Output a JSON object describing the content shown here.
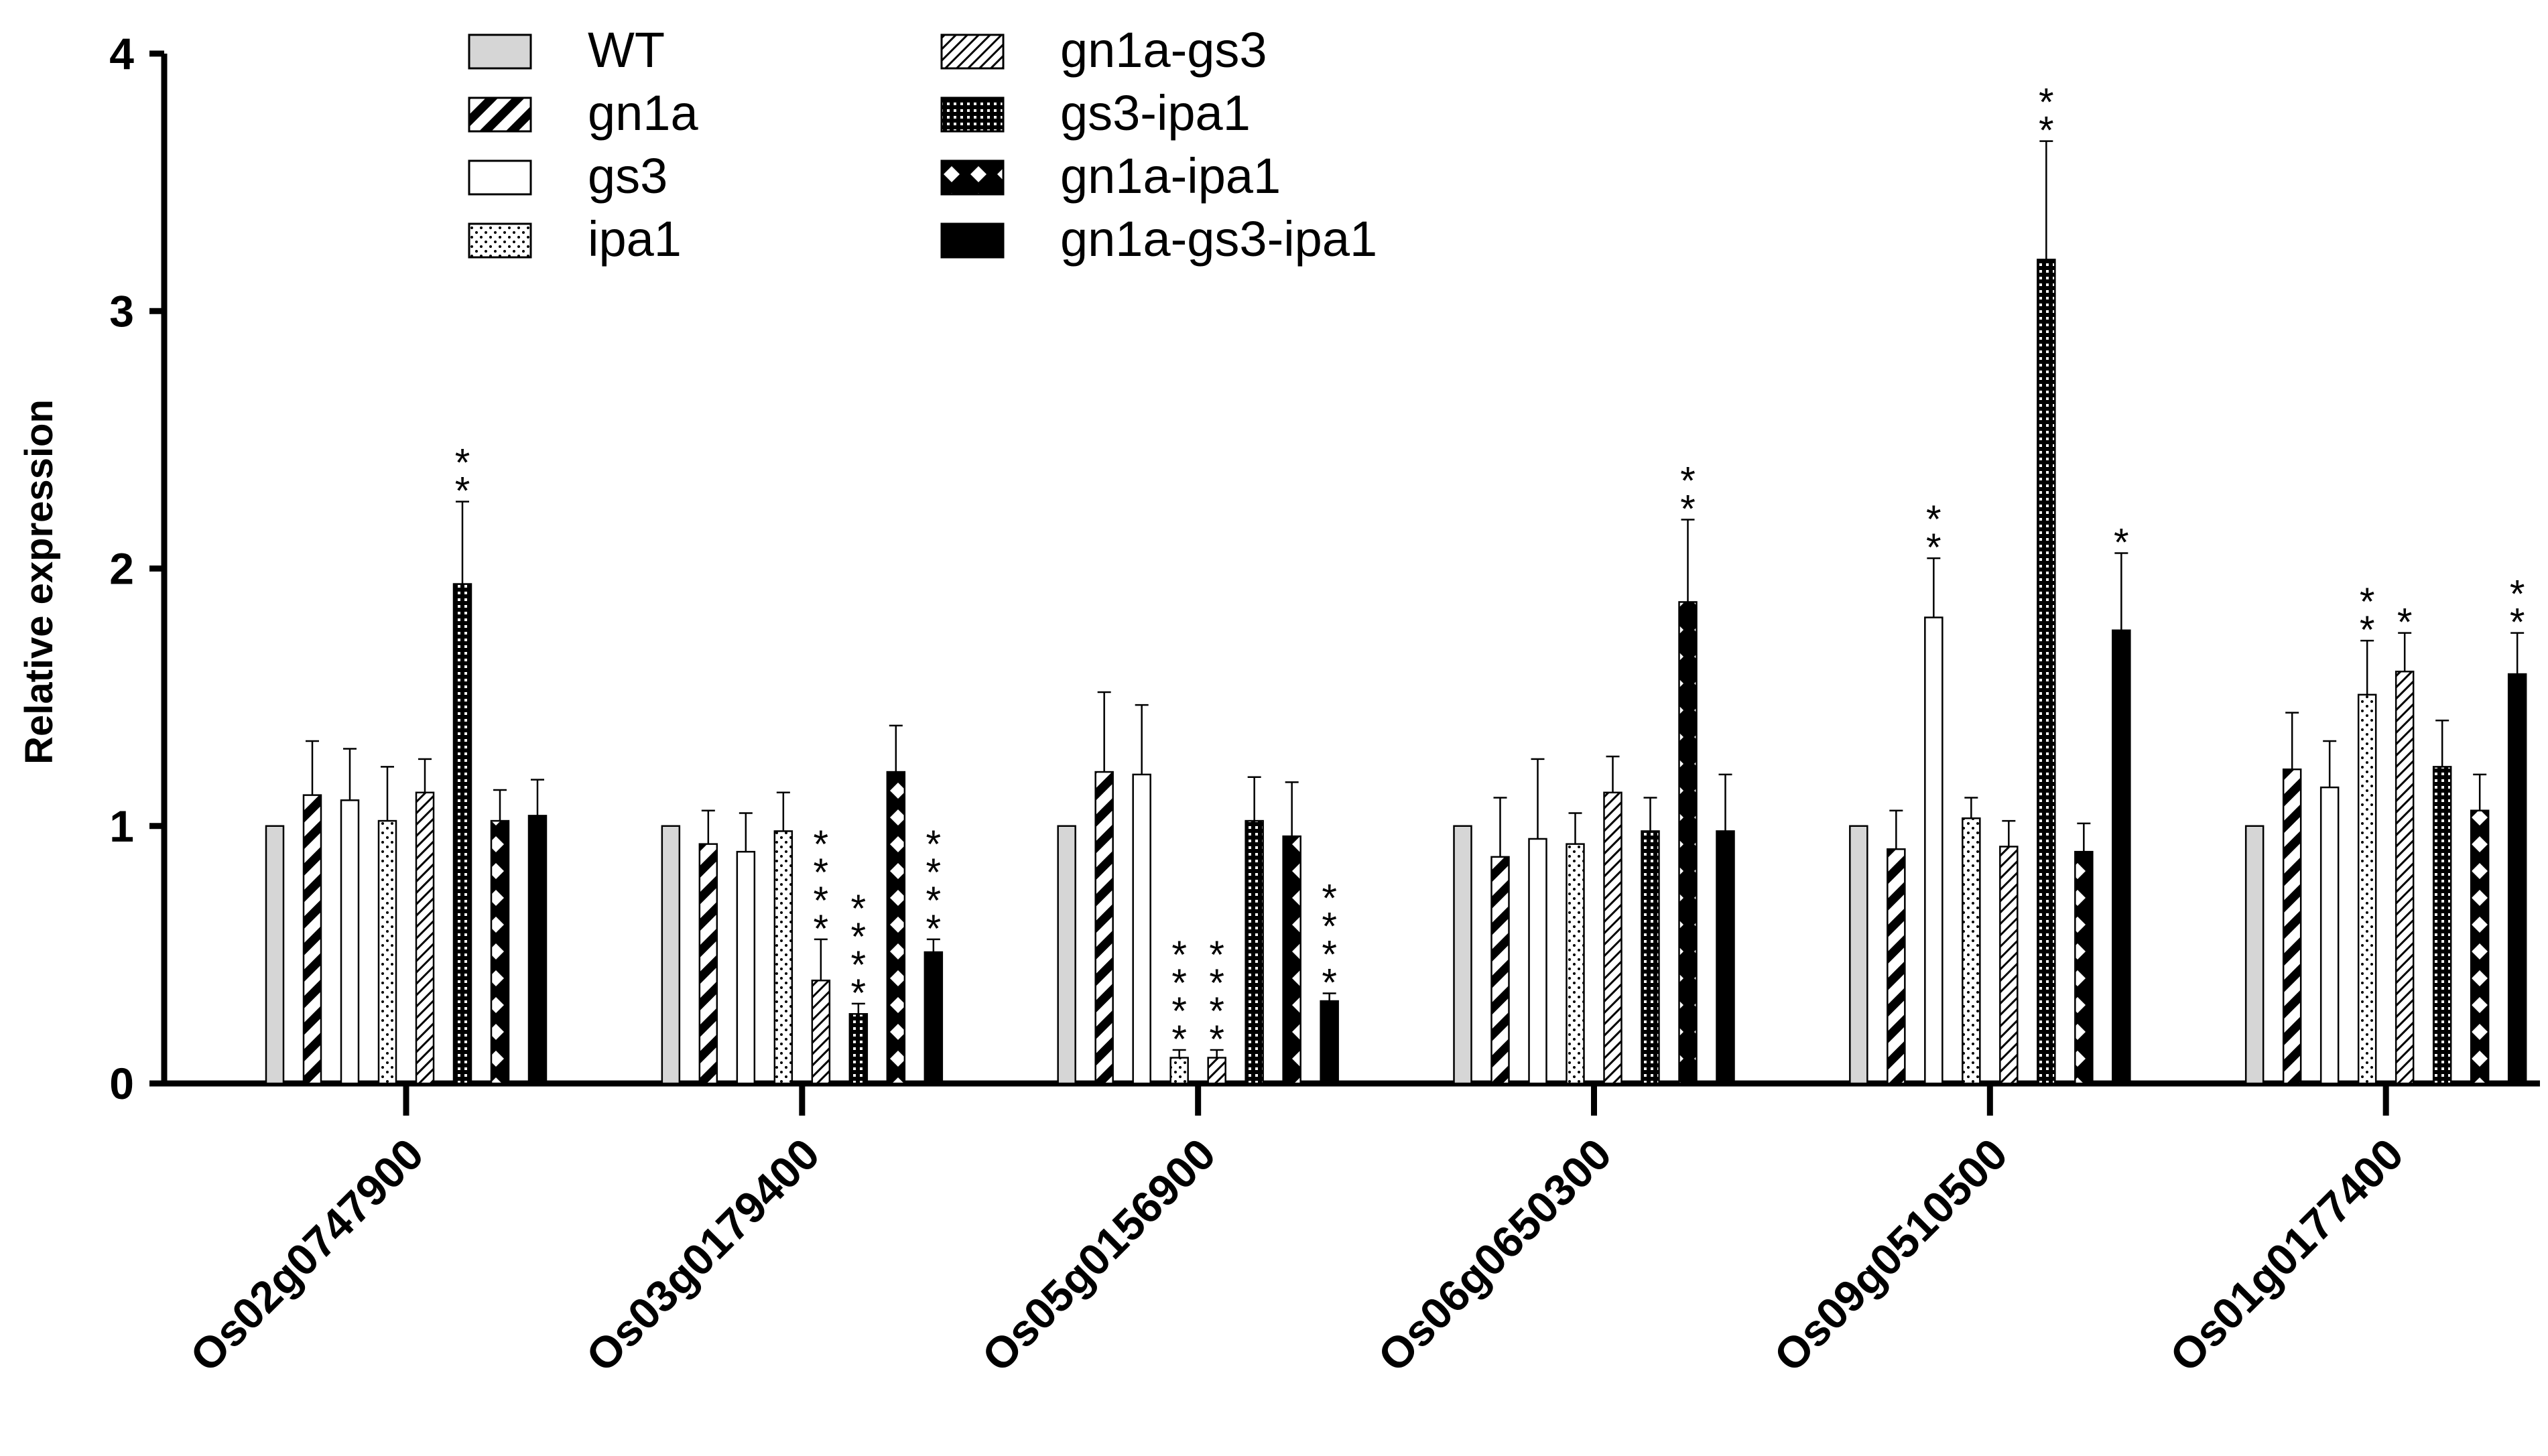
{
  "chart_data": {
    "type": "bar",
    "title": "",
    "xlabel": "",
    "ylabel": "Relative expression",
    "ylim": [
      0,
      4
    ],
    "yticks": [
      "0",
      "1",
      "2",
      "3",
      "4"
    ],
    "grid": false,
    "legend_position": "top-left",
    "categories": [
      "Os02g0747900",
      "Os03g0179400",
      "Os05g0156900",
      "Os06g0650300",
      "Os09g0510500",
      "Os01g0177400"
    ],
    "series": [
      {
        "name": "WT",
        "pattern": "gray",
        "values": [
          1.0,
          1.0,
          1.0,
          1.0,
          1.0,
          1.0
        ],
        "errors": [
          0,
          0,
          0,
          0,
          0,
          0
        ],
        "sig": [
          "",
          "",
          "",
          "",
          "",
          ""
        ]
      },
      {
        "name": "gn1a",
        "pattern": "diag-thick",
        "values": [
          1.12,
          0.93,
          1.21,
          0.88,
          0.91,
          1.22
        ],
        "errors": [
          0.21,
          0.13,
          0.31,
          0.23,
          0.15,
          0.22
        ],
        "sig": [
          "",
          "",
          "",
          "",
          "",
          ""
        ]
      },
      {
        "name": "gs3",
        "pattern": "white",
        "values": [
          1.1,
          0.9,
          1.2,
          0.95,
          1.81,
          1.15
        ],
        "errors": [
          0.2,
          0.15,
          0.27,
          0.31,
          0.23,
          0.18
        ],
        "sig": [
          "",
          "",
          "",
          "",
          "**",
          ""
        ]
      },
      {
        "name": "ipa1",
        "pattern": "dots",
        "values": [
          1.02,
          0.98,
          0.1,
          0.93,
          1.03,
          1.51
        ],
        "errors": [
          0.21,
          0.15,
          0.03,
          0.12,
          0.08,
          0.21
        ],
        "sig": [
          "",
          "",
          "****",
          "",
          "",
          "**"
        ]
      },
      {
        "name": "gn1a-gs3",
        "pattern": "diag-thin",
        "values": [
          1.13,
          0.4,
          0.1,
          1.13,
          0.92,
          1.6
        ],
        "errors": [
          0.13,
          0.16,
          0.03,
          0.14,
          0.1,
          0.15
        ],
        "sig": [
          "",
          "****",
          "****",
          "",
          "",
          "*"
        ]
      },
      {
        "name": "gs3-ipa1",
        "pattern": "grid",
        "values": [
          1.94,
          0.27,
          1.02,
          0.98,
          3.2,
          1.23
        ],
        "errors": [
          0.32,
          0.04,
          0.17,
          0.13,
          0.46,
          0.18
        ],
        "sig": [
          "**",
          "****",
          "",
          "",
          "**",
          ""
        ]
      },
      {
        "name": "gn1a-ipa1",
        "pattern": "cross",
        "values": [
          1.02,
          1.21,
          0.96,
          1.87,
          0.9,
          1.06
        ],
        "errors": [
          0.12,
          0.18,
          0.21,
          0.32,
          0.11,
          0.14
        ],
        "sig": [
          "",
          "",
          "",
          "**",
          "",
          ""
        ]
      },
      {
        "name": "gn1a-gs3-ipa1",
        "pattern": "black",
        "values": [
          1.04,
          0.51,
          0.32,
          0.98,
          1.76,
          1.59
        ],
        "errors": [
          0.14,
          0.05,
          0.03,
          0.22,
          0.3,
          0.16
        ],
        "sig": [
          "",
          "****",
          "****",
          "",
          "*",
          "**"
        ]
      }
    ]
  }
}
